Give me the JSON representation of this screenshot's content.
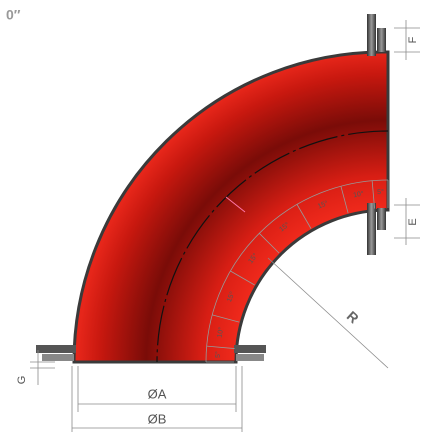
{
  "title": "0″",
  "dimensions": {
    "F": "F",
    "E": "E",
    "G": "G",
    "A": "ØA",
    "B": "ØB",
    "R": "R"
  },
  "angles": [
    "5°",
    "10°",
    "15°",
    "15°",
    "15°",
    "15°",
    "10°",
    "5°"
  ]
}
